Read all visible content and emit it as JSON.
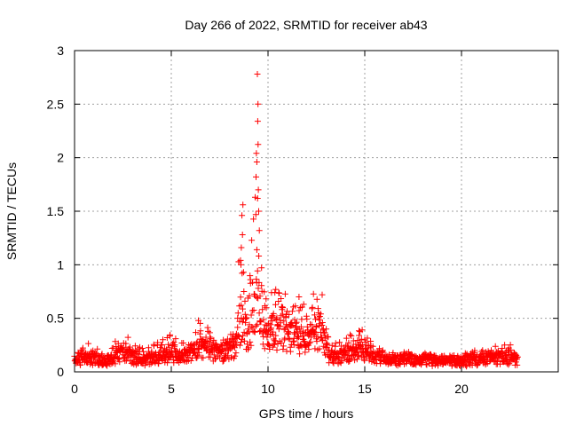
{
  "chart_data": {
    "type": "scatter",
    "title": "Day 266 of 2022, SRMTID for receiver ab43",
    "xlabel": "GPS time / hours",
    "ylabel": "SRMTID / TECUs",
    "xlim": [
      0,
      25
    ],
    "ylim": [
      0,
      3
    ],
    "x_ticks": [
      0,
      5,
      10,
      15,
      20
    ],
    "y_ticks": [
      0,
      0.5,
      1,
      1.5,
      2,
      2.5,
      3
    ],
    "x_tick_labels": [
      "0",
      "5",
      "10",
      "15",
      "20"
    ],
    "y_tick_labels": [
      "0",
      "0.5",
      "1",
      "1.5",
      "2",
      "2.5",
      "3"
    ],
    "grid": true,
    "marker": "plus",
    "color": "#ff0000",
    "envelope": [
      {
        "x": 0.0,
        "base": 0.08,
        "amp": 0.07
      },
      {
        "x": 0.8,
        "base": 0.12,
        "amp": 0.18
      },
      {
        "x": 1.5,
        "base": 0.09,
        "amp": 0.06
      },
      {
        "x": 2.5,
        "base": 0.16,
        "amp": 0.18
      },
      {
        "x": 3.5,
        "base": 0.1,
        "amp": 0.1
      },
      {
        "x": 4.8,
        "base": 0.14,
        "amp": 0.18
      },
      {
        "x": 6.0,
        "base": 0.14,
        "amp": 0.12
      },
      {
        "x": 6.5,
        "base": 0.22,
        "amp": 0.25
      },
      {
        "x": 7.5,
        "base": 0.15,
        "amp": 0.12
      },
      {
        "x": 8.3,
        "base": 0.22,
        "amp": 0.18
      },
      {
        "x": 8.6,
        "base": 0.45,
        "amp": 1.1
      },
      {
        "x": 9.0,
        "base": 0.25,
        "amp": 0.3
      },
      {
        "x": 9.4,
        "base": 0.6,
        "amp": 2.15
      },
      {
        "x": 9.7,
        "base": 0.3,
        "amp": 0.45
      },
      {
        "x": 10.5,
        "base": 0.35,
        "amp": 0.4
      },
      {
        "x": 11.5,
        "base": 0.3,
        "amp": 0.3
      },
      {
        "x": 12.0,
        "base": 0.25,
        "amp": 0.35
      },
      {
        "x": 12.7,
        "base": 0.4,
        "amp": 0.32
      },
      {
        "x": 13.2,
        "base": 0.12,
        "amp": 0.08
      },
      {
        "x": 14.7,
        "base": 0.18,
        "amp": 0.18
      },
      {
        "x": 16.0,
        "base": 0.11,
        "amp": 0.06
      },
      {
        "x": 20.0,
        "base": 0.09,
        "amp": 0.05
      },
      {
        "x": 21.0,
        "base": 0.1,
        "amp": 0.1
      },
      {
        "x": 22.0,
        "base": 0.12,
        "amp": 0.12
      },
      {
        "x": 22.9,
        "base": 0.1,
        "amp": 0.08
      }
    ],
    "notable_points": [
      {
        "x": 9.45,
        "y": 2.78
      },
      {
        "x": 9.48,
        "y": 2.5
      },
      {
        "x": 9.47,
        "y": 2.34
      },
      {
        "x": 9.4,
        "y": 2.04
      },
      {
        "x": 9.42,
        "y": 1.96
      },
      {
        "x": 9.38,
        "y": 1.82
      },
      {
        "x": 9.5,
        "y": 1.7
      },
      {
        "x": 9.46,
        "y": 1.62
      },
      {
        "x": 9.52,
        "y": 1.5
      },
      {
        "x": 8.7,
        "y": 1.56
      },
      {
        "x": 8.65,
        "y": 1.46
      },
      {
        "x": 8.68,
        "y": 1.28
      },
      {
        "x": 8.62,
        "y": 1.16
      },
      {
        "x": 9.55,
        "y": 1.32
      },
      {
        "x": 9.42,
        "y": 1.14
      },
      {
        "x": 8.6,
        "y": 1.0
      },
      {
        "x": 10.4,
        "y": 0.77
      },
      {
        "x": 11.6,
        "y": 0.7
      },
      {
        "x": 12.8,
        "y": 0.72
      },
      {
        "x": 6.4,
        "y": 0.48
      },
      {
        "x": 14.7,
        "y": 0.34
      }
    ],
    "sample_seed": 266
  }
}
